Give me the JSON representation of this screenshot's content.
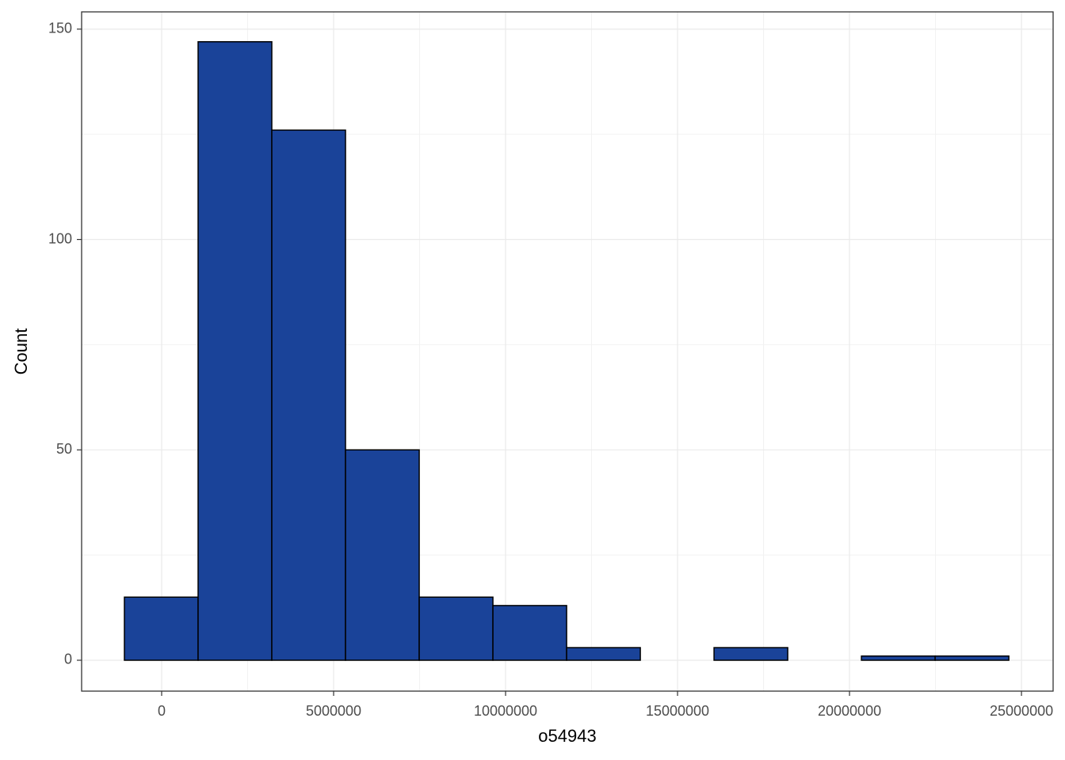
{
  "chart_data": {
    "type": "histogram",
    "x_label": "o54943",
    "y_label": "Count",
    "bins": [
      -1083000,
      1060000,
      3203000,
      5346000,
      7489000,
      9632000,
      11775000,
      13918000,
      16061000,
      18204000,
      20347000,
      22490000,
      24633000
    ],
    "values": [
      15,
      147,
      126,
      50,
      15,
      13,
      3,
      0,
      3,
      0,
      1,
      1
    ],
    "color": "#1a4399",
    "xlim": [
      -2327000,
      25920000
    ],
    "xticks": [
      0,
      5000000,
      10000000,
      15000000,
      20000000,
      25000000
    ],
    "ylim": [
      -7.34,
      154.1
    ],
    "yticks": [
      0,
      50,
      100,
      150
    ],
    "grid": true
  }
}
